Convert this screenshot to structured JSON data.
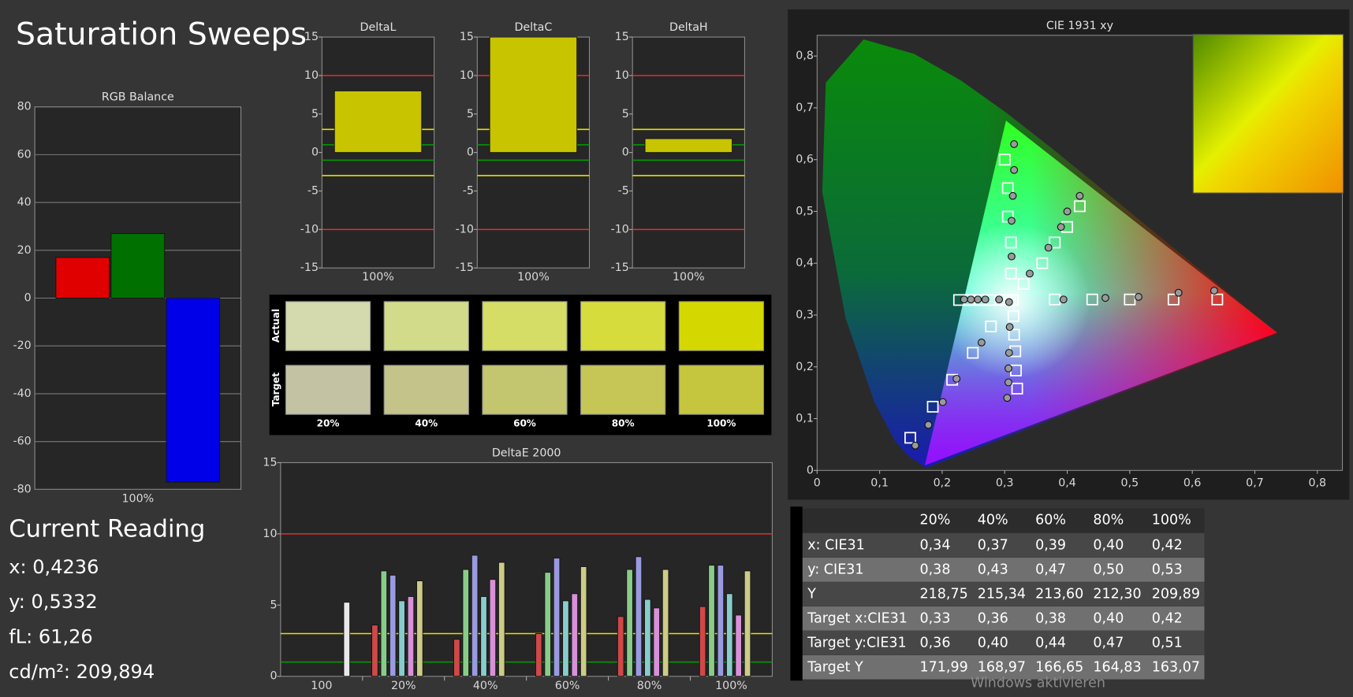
{
  "title": "Saturation Sweeps",
  "current_reading": {
    "title": "Current Reading",
    "lines": [
      "x: 0,4236",
      "y: 0,5332",
      "fL: 61,26",
      "cd/m²: 209,894"
    ]
  },
  "watermark": "Windows aktivieren",
  "swatches": {
    "row_labels": [
      "Actual",
      "Target"
    ],
    "labels": [
      "20%",
      "40%",
      "60%",
      "80%",
      "100%"
    ],
    "actual": [
      "#d4d9ae",
      "#d2db8a",
      "#d5dd66",
      "#d6dc3c",
      "#d5d800"
    ],
    "target": [
      "#c3c3a3",
      "#c4c48a",
      "#c4c56f",
      "#c5c656",
      "#c5c63e"
    ]
  },
  "table": {
    "header": [
      "20%",
      "40%",
      "60%",
      "80%",
      "100%"
    ],
    "rows": [
      {
        "label": "x: CIE31",
        "cells": [
          "0,34",
          "0,37",
          "0,39",
          "0,40",
          "0,42"
        ]
      },
      {
        "label": "y: CIE31",
        "cells": [
          "0,38",
          "0,43",
          "0,47",
          "0,50",
          "0,53"
        ]
      },
      {
        "label": "Y",
        "cells": [
          "218,75",
          "215,34",
          "213,60",
          "212,30",
          "209,89"
        ]
      },
      {
        "label": "Target x:CIE31",
        "cells": [
          "0,33",
          "0,36",
          "0,38",
          "0,40",
          "0,42"
        ]
      },
      {
        "label": "Target y:CIE31",
        "cells": [
          "0,36",
          "0,40",
          "0,44",
          "0,47",
          "0,51"
        ]
      },
      {
        "label": "Target Y",
        "cells": [
          "171,99",
          "168,97",
          "166,65",
          "164,83",
          "163,07"
        ]
      }
    ]
  },
  "chart_data": [
    {
      "type": "bar",
      "title": "RGB Balance",
      "categories": [
        "100%"
      ],
      "series": [
        {
          "color": "#e00000",
          "values": [
            17
          ]
        },
        {
          "color": "#007000",
          "values": [
            27
          ]
        },
        {
          "color": "#0000e8",
          "values": [
            -77
          ]
        }
      ],
      "ylim": [
        -80,
        80
      ],
      "yticks": [
        -80,
        -60,
        -40,
        -20,
        0,
        20,
        40,
        60,
        80
      ],
      "grid": true
    },
    {
      "type": "bar",
      "title": "DeltaL",
      "categories": [
        "100%"
      ],
      "series": [
        {
          "color": "#c8c400",
          "values": [
            8
          ]
        }
      ],
      "ylim": [
        -15,
        15
      ],
      "yticks": [
        -15,
        -10,
        -5,
        0,
        5,
        10,
        15
      ],
      "grid": false,
      "ref_lines": [
        {
          "value": 10,
          "color": "#e03030"
        },
        {
          "value": -10,
          "color": "#e03030"
        },
        {
          "value": 3,
          "color": "#e8e000"
        },
        {
          "value": -3,
          "color": "#e8e000"
        },
        {
          "value": 1,
          "color": "#00a000"
        },
        {
          "value": -1,
          "color": "#00a000"
        }
      ]
    },
    {
      "type": "bar",
      "title": "DeltaC",
      "categories": [
        "100%"
      ],
      "series": [
        {
          "color": "#c8c400",
          "values": [
            15
          ]
        }
      ],
      "ylim": [
        -15,
        15
      ],
      "yticks": [
        -15,
        -10,
        -5,
        0,
        5,
        10,
        15
      ],
      "grid": false,
      "ref_lines": [
        {
          "value": 10,
          "color": "#e03030"
        },
        {
          "value": -10,
          "color": "#e03030"
        },
        {
          "value": 3,
          "color": "#e8e000"
        },
        {
          "value": -3,
          "color": "#e8e000"
        },
        {
          "value": 1,
          "color": "#00a000"
        },
        {
          "value": -1,
          "color": "#00a000"
        }
      ]
    },
    {
      "type": "bar",
      "title": "DeltaH",
      "categories": [
        "100%"
      ],
      "series": [
        {
          "color": "#c8c400",
          "values": [
            1.8
          ]
        }
      ],
      "ylim": [
        -15,
        15
      ],
      "yticks": [
        -15,
        -10,
        -5,
        0,
        5,
        10,
        15
      ],
      "grid": false,
      "ref_lines": [
        {
          "value": 10,
          "color": "#e03030"
        },
        {
          "value": -10,
          "color": "#e03030"
        },
        {
          "value": 3,
          "color": "#e8e000"
        },
        {
          "value": -3,
          "color": "#e8e000"
        },
        {
          "value": 1,
          "color": "#00a000"
        },
        {
          "value": -1,
          "color": "#00a000"
        }
      ]
    },
    {
      "type": "bar",
      "title": "DeltaE 2000",
      "categories": [
        "100",
        "20%",
        "40%",
        "60%",
        "80%",
        "100%"
      ],
      "series": [
        {
          "color": "#d04848",
          "values": [
            null,
            3.6,
            2.6,
            3.0,
            4.2,
            4.9
          ]
        },
        {
          "color": "#88cc88",
          "values": [
            null,
            7.4,
            7.5,
            7.3,
            7.5,
            7.8
          ]
        },
        {
          "color": "#9a9ae0",
          "values": [
            null,
            7.1,
            8.5,
            8.3,
            8.4,
            7.8
          ]
        },
        {
          "color": "#88cccc",
          "values": [
            null,
            5.3,
            5.6,
            5.3,
            5.4,
            5.8
          ]
        },
        {
          "color": "#d890d8",
          "values": [
            null,
            5.6,
            6.8,
            5.8,
            4.8,
            4.3
          ]
        },
        {
          "color": "#cccc88",
          "values": [
            null,
            6.7,
            8.0,
            7.7,
            7.5,
            7.4
          ]
        },
        {
          "color": "#e8e8e8",
          "values": [
            5.2,
            null,
            null,
            null,
            null,
            null
          ]
        }
      ],
      "ylim": [
        0,
        15
      ],
      "yticks": [
        0,
        5,
        10,
        15
      ],
      "grid": false,
      "ref_lines": [
        {
          "value": 10,
          "color": "#e03030"
        },
        {
          "value": 3,
          "color": "#e8e000"
        },
        {
          "value": 1,
          "color": "#00a000"
        }
      ]
    },
    {
      "type": "scatter",
      "title": "CIE 1931 xy",
      "xlim": [
        0,
        0.84
      ],
      "ylim": [
        0,
        0.84
      ],
      "xticks": [
        0,
        {
          "value": 0.1,
          "label": "0,1"
        },
        {
          "value": 0.2,
          "label": "0,2"
        },
        {
          "value": 0.3,
          "label": "0,3"
        },
        {
          "value": 0.4,
          "label": "0,4"
        },
        {
          "value": 0.5,
          "label": "0,5"
        },
        {
          "value": 0.6,
          "label": "0,6"
        },
        {
          "value": 0.7,
          "label": "0,7"
        },
        {
          "value": 0.8,
          "label": "0,8"
        }
      ],
      "yticks": [
        0,
        {
          "value": 0.1,
          "label": "0,1"
        },
        {
          "value": 0.2,
          "label": "0,2"
        },
        {
          "value": 0.3,
          "label": "0,3"
        },
        {
          "value": 0.4,
          "label": "0,4"
        },
        {
          "value": 0.5,
          "label": "0,5"
        },
        {
          "value": 0.6,
          "label": "0,6"
        },
        {
          "value": 0.7,
          "label": "0,7"
        },
        {
          "value": 0.8,
          "label": "0,8"
        }
      ],
      "grid": false,
      "series": [
        {
          "marker": "square",
          "color": "#ffffff",
          "x": [
            0.313,
            0.38,
            0.44,
            0.5,
            0.57,
            0.64,
            0.31,
            0.31,
            0.305,
            0.305,
            0.3,
            0.278,
            0.249,
            0.216,
            0.185,
            0.149,
            0.293,
            0.277,
            0.26,
            0.244,
            0.227,
            0.314,
            0.315,
            0.317,
            0.318,
            0.32,
            0.33,
            0.36,
            0.38,
            0.4,
            0.42
          ],
          "values": [
            0.329,
            0.33,
            0.33,
            0.33,
            0.33,
            0.33,
            0.38,
            0.44,
            0.49,
            0.545,
            0.6,
            0.278,
            0.227,
            0.175,
            0.123,
            0.063,
            0.329,
            0.329,
            0.329,
            0.329,
            0.329,
            0.298,
            0.262,
            0.23,
            0.193,
            0.158,
            0.36,
            0.4,
            0.44,
            0.47,
            0.51
          ]
        },
        {
          "marker": "circle",
          "color": "#9a9a9a",
          "x": [
            0.307,
            0.394,
            0.461,
            0.514,
            0.578,
            0.635,
            0.311,
            0.311,
            0.313,
            0.315,
            0.315,
            0.263,
            0.223,
            0.201,
            0.178,
            0.157,
            0.291,
            0.269,
            0.257,
            0.246,
            0.235,
            0.308,
            0.307,
            0.306,
            0.306,
            0.304,
            0.34,
            0.37,
            0.39,
            0.4,
            0.42
          ],
          "values": [
            0.325,
            0.33,
            0.333,
            0.335,
            0.343,
            0.347,
            0.413,
            0.482,
            0.53,
            0.58,
            0.63,
            0.247,
            0.177,
            0.132,
            0.088,
            0.048,
            0.33,
            0.33,
            0.33,
            0.33,
            0.33,
            0.277,
            0.227,
            0.197,
            0.17,
            0.14,
            0.38,
            0.43,
            0.47,
            0.5,
            0.53
          ]
        }
      ]
    }
  ]
}
